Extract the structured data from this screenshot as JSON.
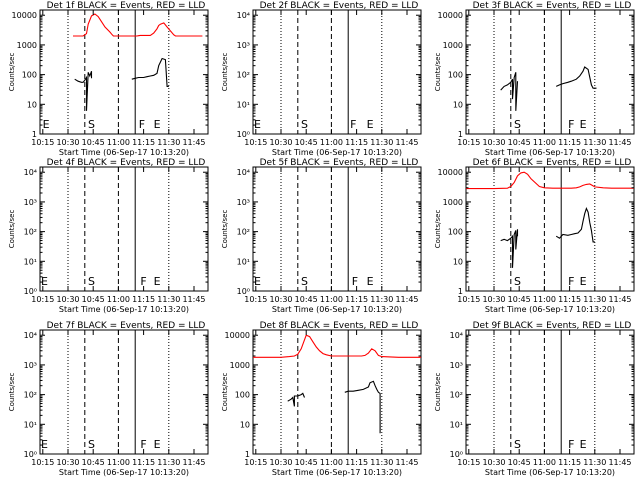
{
  "figure": {
    "background": "#ffffff"
  },
  "chart_data": [
    {
      "type": "line",
      "title": "Det 1f BLACK = Events, RED = LLD",
      "xlabel": "Start Time (06-Sep-17 10:13:20)",
      "ylabel": "Counts/sec",
      "y_scale": "log",
      "ylim": [
        1,
        15000
      ],
      "y_ticks": [
        "1",
        "10",
        "100",
        "1000",
        "10000"
      ],
      "x_ticks": [
        "10:15",
        "10:30",
        "10:45",
        "11:00",
        "11:15",
        "11:30",
        "11:45"
      ],
      "xlim": [
        "10:13:20",
        "11:53:20"
      ],
      "markers": [
        {
          "label": "E",
          "x": "10:17"
        },
        {
          "label": "S",
          "x": "10:44"
        },
        {
          "label": "F",
          "x": "11:14"
        },
        {
          "label": "E",
          "x": "11:23"
        }
      ],
      "series": [
        {
          "color": "#ff0000",
          "x": [
            "10:33",
            "10:35",
            "10:37",
            "10:38",
            "10:39",
            "10:40",
            "10:41",
            "10:42",
            "10:44",
            "10:46",
            "10:48",
            "10:50",
            "10:52",
            "10:55",
            "10:56",
            "10:57",
            "11:08",
            "11:11",
            "11:12",
            "11:13",
            "11:16",
            "11:19",
            "11:21",
            "11:23",
            "11:24",
            "11:25",
            "11:27",
            "11:29",
            "11:33",
            "11:34",
            "11:35",
            "11:37",
            "11:38",
            "11:40",
            "11:50"
          ],
          "y": [
            2000,
            2000,
            2000,
            2000,
            2000,
            2200,
            2400,
            5000,
            9500,
            11000,
            9000,
            6000,
            4000,
            2700,
            2300,
            2000,
            2000,
            2000,
            2050,
            2100,
            2100,
            2100,
            2500,
            3500,
            4500,
            5000,
            5500,
            4000,
            2200,
            2000,
            2000,
            2000,
            2000,
            2000,
            2000
          ]
        },
        {
          "color": "#000000",
          "x": [
            "10:34",
            "10:36",
            "10:38",
            "10:39",
            "10:40",
            "10:41",
            "10:41",
            "10:42",
            "10:43",
            "10:44",
            "10:44"
          ],
          "y": [
            70,
            60,
            55,
            55,
            65,
            80,
            6,
            120,
            90,
            130,
            75
          ]
        },
        {
          "color": "#000000",
          "x": [
            "11:08",
            "11:10",
            "11:12",
            "11:15",
            "11:17",
            "11:19",
            "11:21",
            "11:23",
            "11:24",
            "11:26",
            "11:28",
            "11:29",
            "11:30"
          ],
          "y": [
            70,
            75,
            80,
            80,
            85,
            90,
            95,
            110,
            200,
            350,
            320,
            40,
            40
          ]
        }
      ]
    },
    {
      "type": "line",
      "title": "Det 2f BLACK = Events, RED = LLD",
      "xlabel": "Start Time (06-Sep-17 10:13:20)",
      "ylabel": "Counts/sec",
      "y_scale": "log",
      "ylim": [
        1,
        15000
      ],
      "y_ticks": [
        "10⁰",
        "10¹",
        "10²",
        "10³",
        "10⁴"
      ],
      "x_ticks": [
        "10:15",
        "10:30",
        "10:45",
        "11:00",
        "11:15",
        "11:30",
        "11:45"
      ],
      "xlim": [
        "10:13:20",
        "11:53:20"
      ],
      "markers": [
        {
          "label": "E",
          "x": "10:16"
        },
        {
          "label": "S",
          "x": "10:44"
        },
        {
          "label": "F",
          "x": "11:13"
        },
        {
          "label": "E",
          "x": "11:23"
        }
      ],
      "series": []
    },
    {
      "type": "line",
      "title": "Det 3f BLACK = Events, RED = LLD",
      "xlabel": "Start Time (06-Sep-17 10:13:20)",
      "ylabel": "Counts/sec",
      "y_scale": "log",
      "ylim": [
        1,
        15000
      ],
      "y_ticks": [
        "1",
        "10",
        "100",
        "1000",
        "10000"
      ],
      "x_ticks": [
        "10:15",
        "10:30",
        "10:45",
        "11:00",
        "11:15",
        "11:30",
        "11:45"
      ],
      "xlim": [
        "10:13:20",
        "11:53:20"
      ],
      "markers": [
        {
          "label": "S",
          "x": "10:44"
        },
        {
          "label": "F",
          "x": "11:16"
        },
        {
          "label": "E",
          "x": "11:23"
        }
      ],
      "series": [
        {
          "color": "#000000",
          "x": [
            "10:34",
            "10:36",
            "10:38",
            "10:40",
            "10:41",
            "10:41",
            "10:42",
            "10:43",
            "10:43",
            "10:44"
          ],
          "y": [
            30,
            40,
            45,
            55,
            70,
            15,
            80,
            120,
            6,
            60
          ]
        },
        {
          "color": "#000000",
          "x": [
            "11:07",
            "11:09",
            "11:11",
            "11:14",
            "11:16",
            "11:19",
            "11:21",
            "11:23",
            "11:24",
            "11:26",
            "11:28",
            "11:29",
            "11:31"
          ],
          "y": [
            40,
            45,
            50,
            55,
            60,
            70,
            90,
            130,
            180,
            150,
            45,
            35,
            35
          ]
        }
      ]
    },
    {
      "type": "line",
      "title": "Det 4f BLACK = Events, RED = LLD",
      "xlabel": "Start Time (06-Sep-17 10:13:20)",
      "ylabel": "Counts/sec",
      "y_scale": "log",
      "ylim": [
        1,
        15000
      ],
      "y_ticks": [
        "10⁰",
        "10¹",
        "10²",
        "10³",
        "10⁴"
      ],
      "x_ticks": [
        "10:15",
        "10:30",
        "10:45",
        "11:00",
        "11:15",
        "11:30",
        "11:45"
      ],
      "xlim": [
        "10:13:20",
        "11:53:20"
      ],
      "markers": [
        {
          "label": "E",
          "x": "10:16"
        },
        {
          "label": "S",
          "x": "10:44"
        },
        {
          "label": "F",
          "x": "11:15"
        },
        {
          "label": "E",
          "x": "11:23"
        }
      ],
      "series": []
    },
    {
      "type": "line",
      "title": "Det 5f BLACK = Events, RED = LLD",
      "xlabel": "Start Time (06-Sep-17 10:13:20)",
      "ylabel": "Counts/sec",
      "y_scale": "log",
      "ylim": [
        1,
        15000
      ],
      "y_ticks": [
        "10⁰",
        "10¹",
        "10²",
        "10³",
        "10⁴"
      ],
      "x_ticks": [
        "10:15",
        "10:30",
        "10:45",
        "11:00",
        "11:15",
        "11:30",
        "11:45"
      ],
      "xlim": [
        "10:13:20",
        "11:53:20"
      ],
      "markers": [
        {
          "label": "E",
          "x": "10:16"
        },
        {
          "label": "S",
          "x": "10:44"
        },
        {
          "label": "F",
          "x": "11:14"
        },
        {
          "label": "E",
          "x": "11:23"
        }
      ],
      "series": []
    },
    {
      "type": "line",
      "title": "Det 6f BLACK = Events, RED = LLD",
      "xlabel": "Start Time (06-Sep-17 10:13:20)",
      "ylabel": "Counts/sec",
      "y_scale": "log",
      "ylim": [
        1,
        15000
      ],
      "y_ticks": [
        "1",
        "10",
        "100",
        "1000",
        "10000"
      ],
      "x_ticks": [
        "10:15",
        "10:30",
        "10:45",
        "11:00",
        "11:15",
        "11:30",
        "11:45"
      ],
      "xlim": [
        "10:13:20",
        "11:53:20"
      ],
      "markers": [
        {
          "label": "S",
          "x": "10:44"
        },
        {
          "label": "F",
          "x": "11:16"
        },
        {
          "label": "E",
          "x": "11:23"
        }
      ],
      "series": [
        {
          "color": "#ff0000",
          "x": [
            "10:13:20",
            "10:20",
            "10:30",
            "10:38",
            "10:40",
            "10:42",
            "10:44",
            "10:46",
            "10:48",
            "10:50",
            "10:52",
            "10:55",
            "10:57",
            "11:00",
            "11:05",
            "11:10",
            "11:13",
            "11:16",
            "11:19",
            "11:21",
            "11:23",
            "11:25",
            "11:27",
            "11:30",
            "11:35",
            "11:40",
            "11:45",
            "11:53:20"
          ],
          "y": [
            2800,
            2800,
            2800,
            2900,
            3300,
            4500,
            7500,
            9500,
            10000,
            8500,
            6000,
            4200,
            3300,
            3000,
            2900,
            2900,
            2900,
            2900,
            3000,
            3200,
            3600,
            3900,
            4000,
            3200,
            3000,
            2900,
            2900,
            2900
          ]
        },
        {
          "color": "#000000",
          "x": [
            "10:34",
            "10:36",
            "10:38",
            "10:40",
            "10:41",
            "10:41",
            "10:42",
            "10:43",
            "10:43",
            "10:44",
            "10:44"
          ],
          "y": [
            50,
            55,
            50,
            60,
            70,
            6,
            80,
            110,
            25,
            120,
            70
          ]
        },
        {
          "color": "#000000",
          "x": [
            "11:07",
            "11:09",
            "11:11",
            "11:14",
            "11:16",
            "11:18",
            "11:20",
            "11:22",
            "11:23",
            "11:24",
            "11:25",
            "11:26",
            "11:27",
            "11:28",
            "11:29",
            "11:30"
          ],
          "y": [
            70,
            60,
            80,
            75,
            80,
            85,
            90,
            120,
            220,
            400,
            600,
            450,
            200,
            110,
            45,
            45
          ]
        }
      ]
    },
    {
      "type": "line",
      "title": "Det 7f BLACK = Events, RED = LLD",
      "xlabel": "Start Time (06-Sep-17 10:13:20)",
      "ylabel": "Counts/sec",
      "y_scale": "log",
      "ylim": [
        1,
        15000
      ],
      "y_ticks": [
        "10⁰",
        "10¹",
        "10²",
        "10³",
        "10⁴"
      ],
      "x_ticks": [
        "10:15",
        "10:30",
        "10:45",
        "11:00",
        "11:15",
        "11:30",
        "11:45"
      ],
      "xlim": [
        "10:13:20",
        "11:53:20"
      ],
      "markers": [
        {
          "label": "E",
          "x": "10:16"
        },
        {
          "label": "S",
          "x": "10:44"
        },
        {
          "label": "F",
          "x": "11:15"
        },
        {
          "label": "E",
          "x": "11:23"
        }
      ],
      "series": []
    },
    {
      "type": "line",
      "title": "Det 8f BLACK = Events, RED = LLD",
      "xlabel": "Start Time (06-Sep-17 10:13:20)",
      "ylabel": "Counts/sec",
      "y_scale": "log",
      "ylim": [
        1,
        15000
      ],
      "y_ticks": [
        "1",
        "10",
        "100",
        "1000",
        "10000"
      ],
      "x_ticks": [
        "10:15",
        "10:30",
        "10:45",
        "11:00",
        "11:15",
        "11:30",
        "11:45"
      ],
      "xlim": [
        "10:13:20",
        "11:53:20"
      ],
      "markers": [],
      "series": [
        {
          "color": "#ff0000",
          "x": [
            "10:13:20",
            "10:20",
            "10:30",
            "10:35",
            "10:38",
            "10:40",
            "10:42",
            "10:44",
            "10:45",
            "10:47",
            "10:49",
            "10:51",
            "10:53",
            "10:55",
            "10:57",
            "11:00",
            "11:05",
            "11:10",
            "11:15",
            "11:18",
            "11:20",
            "11:22",
            "11:24",
            "11:26",
            "11:28",
            "11:30",
            "11:40",
            "11:53:20"
          ],
          "y": [
            1800,
            1800,
            1800,
            1900,
            2000,
            2300,
            3500,
            7000,
            10000,
            9000,
            6000,
            4000,
            3000,
            2400,
            2200,
            2000,
            2000,
            2000,
            2000,
            2000,
            2100,
            2500,
            3500,
            3000,
            2100,
            1900,
            1800,
            1800
          ]
        },
        {
          "color": "#000000",
          "x": [
            "10:34",
            "10:36",
            "10:37",
            "10:38",
            "10:38",
            "10:40",
            "10:42",
            "10:43",
            "10:44"
          ],
          "y": [
            60,
            70,
            80,
            40,
            90,
            90,
            100,
            110,
            80
          ]
        },
        {
          "color": "#000000",
          "x": [
            "11:08",
            "11:10",
            "11:13",
            "11:16",
            "11:19",
            "11:22",
            "11:23",
            "11:25",
            "11:26",
            "11:27",
            "11:28",
            "11:29",
            "11:29"
          ],
          "y": [
            120,
            130,
            130,
            140,
            150,
            180,
            250,
            280,
            200,
            150,
            120,
            110,
            5
          ]
        }
      ]
    },
    {
      "type": "line",
      "title": "Det 9f BLACK = Events, RED = LLD",
      "xlabel": "Start Time (06-Sep-17 10:13:20)",
      "ylabel": "Counts/sec",
      "y_scale": "log",
      "ylim": [
        1,
        15000
      ],
      "y_ticks": [
        "10⁰",
        "10¹",
        "10²",
        "10³",
        "10⁴"
      ],
      "x_ticks": [
        "10:15",
        "10:30",
        "10:45",
        "11:00",
        "11:15",
        "11:30",
        "11:45"
      ],
      "xlim": [
        "10:13:20",
        "11:53:20"
      ],
      "markers": [
        {
          "label": "S",
          "x": "10:44"
        },
        {
          "label": "F",
          "x": "11:16"
        },
        {
          "label": "E",
          "x": "11:23"
        }
      ],
      "series": []
    }
  ],
  "reference_lines": {
    "dotted_black": [
      "10:30",
      "11:30"
    ],
    "dashed_black": [
      "10:40",
      "11:00"
    ],
    "solid_black": [
      "11:10"
    ],
    "solid_black_thick_y": []
  }
}
